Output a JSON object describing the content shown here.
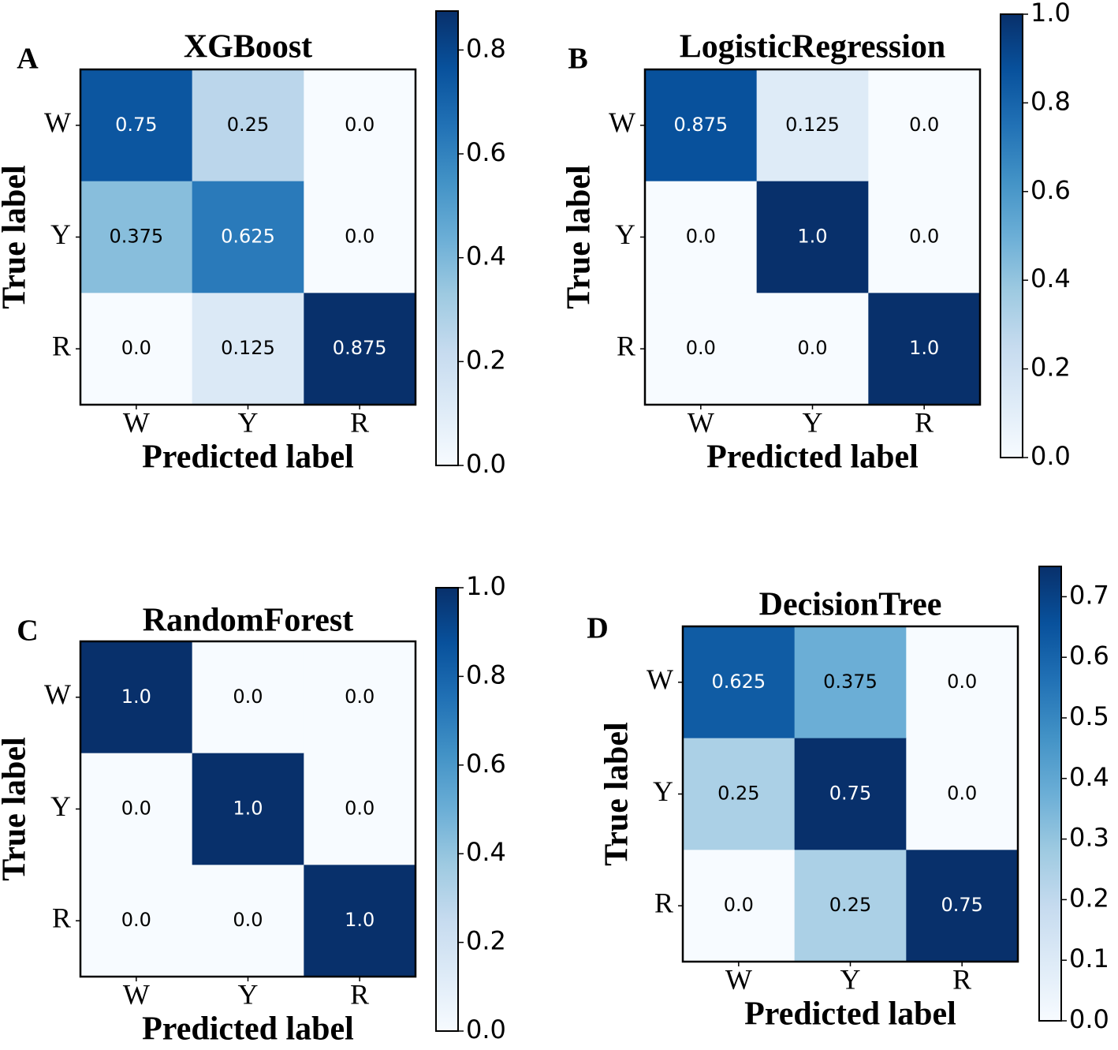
{
  "chart_data": [
    {
      "type": "heatmap",
      "panel": "A",
      "title": "XGBoost",
      "xlabel": "Predicted label",
      "ylabel": "True label",
      "x_categories": [
        "W",
        "Y",
        "R"
      ],
      "y_categories": [
        "W",
        "Y",
        "R"
      ],
      "values": [
        [
          0.75,
          0.25,
          0
        ],
        [
          0.375,
          0.625,
          0
        ],
        [
          0,
          0.125,
          0.875
        ]
      ],
      "value_labels": [
        [
          "0.75",
          "0.25",
          "0.0"
        ],
        [
          "0.375",
          "0.625",
          "0.0"
        ],
        [
          "0.0",
          "0.125",
          "0.875"
        ]
      ],
      "colormap": "Blues",
      "clim": [
        0,
        0.875
      ],
      "cticks": [
        {
          "value": 0,
          "label": "0.0"
        },
        0.2,
        0.4,
        0.6,
        0.8
      ]
    },
    {
      "type": "heatmap",
      "panel": "B",
      "title": "LogisticRegression",
      "xlabel": "Predicted label",
      "ylabel": "True label",
      "x_categories": [
        "W",
        "Y",
        "R"
      ],
      "y_categories": [
        "W",
        "Y",
        "R"
      ],
      "values": [
        [
          0.875,
          0.125,
          0
        ],
        [
          0,
          1,
          0
        ],
        [
          0,
          0,
          1
        ]
      ],
      "value_labels": [
        [
          "0.875",
          "0.125",
          "0.0"
        ],
        [
          "0.0",
          "1.0",
          "0.0"
        ],
        [
          "0.0",
          "0.0",
          "1.0"
        ]
      ],
      "colormap": "Blues",
      "clim": [
        0,
        1
      ],
      "cticks": [
        {
          "value": 0,
          "label": "0.0"
        },
        0.2,
        0.4,
        0.6,
        0.8,
        {
          "value": 1,
          "label": "1.0"
        }
      ]
    },
    {
      "type": "heatmap",
      "panel": "C",
      "title": "RandomForest",
      "xlabel": "Predicted label",
      "ylabel": "True label",
      "x_categories": [
        "W",
        "Y",
        "R"
      ],
      "y_categories": [
        "W",
        "Y",
        "R"
      ],
      "values": [
        [
          1,
          0,
          0
        ],
        [
          0,
          1,
          0
        ],
        [
          0,
          0,
          1
        ]
      ],
      "value_labels": [
        [
          "1.0",
          "0.0",
          "0.0"
        ],
        [
          "0.0",
          "1.0",
          "0.0"
        ],
        [
          "0.0",
          "0.0",
          "1.0"
        ]
      ],
      "colormap": "Blues",
      "clim": [
        0,
        1
      ],
      "cticks": [
        {
          "value": 0,
          "label": "0.0"
        },
        0.2,
        0.4,
        0.6,
        0.8,
        {
          "value": 1,
          "label": "1.0"
        }
      ]
    },
    {
      "type": "heatmap",
      "panel": "D",
      "title": "DecisionTree",
      "xlabel": "Predicted label",
      "ylabel": "True label",
      "x_categories": [
        "W",
        "Y",
        "R"
      ],
      "y_categories": [
        "W",
        "Y",
        "R"
      ],
      "values": [
        [
          0.625,
          0.375,
          0
        ],
        [
          0.25,
          0.75,
          0
        ],
        [
          0,
          0.25,
          0.75
        ]
      ],
      "value_labels": [
        [
          "0.625",
          "0.375",
          "0.0"
        ],
        [
          "0.25",
          "0.75",
          "0.0"
        ],
        [
          "0.0",
          "0.25",
          "0.75"
        ]
      ],
      "colormap": "Blues",
      "clim": [
        0,
        0.75
      ],
      "cticks": [
        {
          "value": 0,
          "label": "0.0"
        },
        0.1,
        0.2,
        0.3,
        0.4,
        0.5,
        0.6,
        0.7
      ]
    }
  ]
}
